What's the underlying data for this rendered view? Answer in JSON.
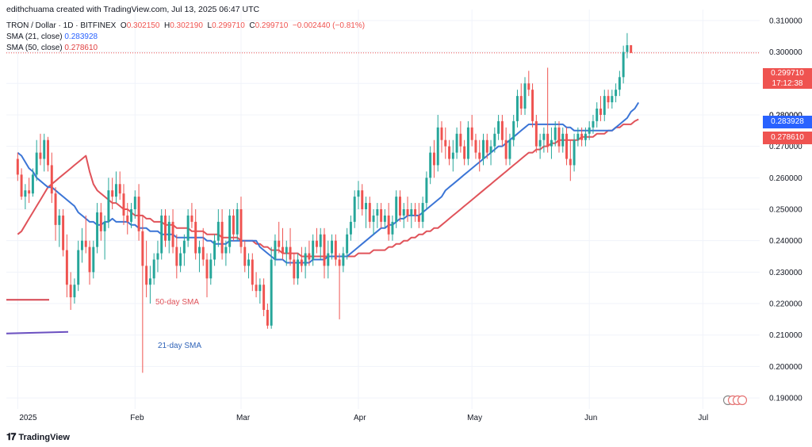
{
  "header": {
    "credit": "edithchuama created with TradingView.com, Jul 13, 2025 06:47 UTC",
    "symbol": "TRON / Dollar · 1D · BITFINEX",
    "o_label": "O",
    "o_value": "0.302150",
    "h_label": "H",
    "h_value": "0.302190",
    "l_label": "L",
    "l_value": "0.299710",
    "c_label": "C",
    "c_value": "0.299710",
    "change": "−0.002440 (−0.81%)",
    "sma21_label": "SMA (21, close)",
    "sma21_value": "0.283928",
    "sma50_label": "SMA (50, close)",
    "sma50_value": "0.278610"
  },
  "price_tags": {
    "last_price": "0.299710",
    "countdown": "17:12:38",
    "sma21": "0.283928",
    "sma50": "0.278610",
    "hidden_tick": "0.280000"
  },
  "annotations": {
    "sma50_text": "50-day SMA",
    "sma21_text": "21-day SMA"
  },
  "footer": {
    "brand": "TradingView",
    "brand_icon": "tradingview-logo-icon"
  },
  "colors": {
    "up": "#26a69a",
    "down": "#ef5350",
    "sma21": "#3b75d6",
    "sma50": "#e0535a",
    "last_line": "#ef5350",
    "grid": "#f0f3fa",
    "legend_sma50_line": "#d64550",
    "legend_sma21_line": "#6a4fc0"
  },
  "chart_data": {
    "type": "candlestick",
    "symbol": "TRON / Dollar",
    "interval": "1D",
    "exchange": "BITFINEX",
    "y_ticks": [
      0.19,
      0.2,
      0.21,
      0.22,
      0.23,
      0.24,
      0.25,
      0.26,
      0.27,
      0.28,
      0.29,
      0.3,
      0.31
    ],
    "y_tick_labels": [
      "0.190000",
      "0.200000",
      "0.210000",
      "0.220000",
      "0.230000",
      "0.240000",
      "0.250000",
      "0.260000",
      "0.270000",
      "0.280000",
      "0.290000",
      "0.300000",
      "0.310000"
    ],
    "ylim": [
      0.1865,
      0.3135
    ],
    "x_labels": [
      "2025",
      "Feb",
      "Mar",
      "Apr",
      "May",
      "Jun",
      "Jul"
    ],
    "x_label_days": [
      1,
      32,
      60,
      91,
      121,
      152,
      182
    ],
    "day_range": [
      -2,
      197
    ],
    "first_day": 1,
    "last_price": 0.29971,
    "ohlc": [
      [
        0.266,
        0.268,
        0.259,
        0.261
      ],
      [
        0.261,
        0.263,
        0.253,
        0.254
      ],
      [
        0.254,
        0.258,
        0.25,
        0.256
      ],
      [
        0.256,
        0.26,
        0.252,
        0.255
      ],
      [
        0.255,
        0.263,
        0.254,
        0.261
      ],
      [
        0.261,
        0.272,
        0.259,
        0.268
      ],
      [
        0.268,
        0.274,
        0.264,
        0.266
      ],
      [
        0.266,
        0.274,
        0.262,
        0.272
      ],
      [
        0.272,
        0.273,
        0.262,
        0.264
      ],
      [
        0.264,
        0.268,
        0.252,
        0.255
      ],
      [
        0.255,
        0.257,
        0.24,
        0.245
      ],
      [
        0.245,
        0.25,
        0.238,
        0.248
      ],
      [
        0.248,
        0.25,
        0.235,
        0.237
      ],
      [
        0.237,
        0.242,
        0.222,
        0.226
      ],
      [
        0.226,
        0.23,
        0.218,
        0.222
      ],
      [
        0.222,
        0.228,
        0.22,
        0.226
      ],
      [
        0.226,
        0.24,
        0.224,
        0.237
      ],
      [
        0.237,
        0.244,
        0.233,
        0.24
      ],
      [
        0.24,
        0.248,
        0.236,
        0.238
      ],
      [
        0.238,
        0.24,
        0.226,
        0.23
      ],
      [
        0.23,
        0.24,
        0.228,
        0.238
      ],
      [
        0.238,
        0.252,
        0.236,
        0.249
      ],
      [
        0.249,
        0.252,
        0.24,
        0.243
      ],
      [
        0.243,
        0.248,
        0.234,
        0.246
      ],
      [
        0.246,
        0.26,
        0.244,
        0.256
      ],
      [
        0.256,
        0.26,
        0.25,
        0.254
      ],
      [
        0.254,
        0.262,
        0.252,
        0.258
      ],
      [
        0.258,
        0.262,
        0.253,
        0.255
      ],
      [
        0.255,
        0.258,
        0.245,
        0.248
      ],
      [
        0.248,
        0.252,
        0.242,
        0.246
      ],
      [
        0.246,
        0.252,
        0.244,
        0.25
      ],
      [
        0.25,
        0.256,
        0.247,
        0.254
      ],
      [
        0.254,
        0.258,
        0.24,
        0.243
      ],
      [
        0.243,
        0.248,
        0.198,
        0.232
      ],
      [
        0.232,
        0.24,
        0.222,
        0.226
      ],
      [
        0.226,
        0.232,
        0.22,
        0.228
      ],
      [
        0.228,
        0.236,
        0.226,
        0.234
      ],
      [
        0.234,
        0.24,
        0.23,
        0.236
      ],
      [
        0.236,
        0.25,
        0.234,
        0.248
      ],
      [
        0.248,
        0.25,
        0.238,
        0.24
      ],
      [
        0.24,
        0.248,
        0.236,
        0.246
      ],
      [
        0.246,
        0.25,
        0.236,
        0.238
      ],
      [
        0.238,
        0.242,
        0.228,
        0.232
      ],
      [
        0.232,
        0.238,
        0.23,
        0.236
      ],
      [
        0.236,
        0.242,
        0.232,
        0.24
      ],
      [
        0.24,
        0.25,
        0.238,
        0.248
      ],
      [
        0.248,
        0.252,
        0.244,
        0.246
      ],
      [
        0.246,
        0.25,
        0.234,
        0.236
      ],
      [
        0.236,
        0.24,
        0.23,
        0.238
      ],
      [
        0.238,
        0.244,
        0.232,
        0.234
      ],
      [
        0.234,
        0.236,
        0.222,
        0.228
      ],
      [
        0.228,
        0.236,
        0.226,
        0.234
      ],
      [
        0.234,
        0.242,
        0.232,
        0.24
      ],
      [
        0.24,
        0.25,
        0.238,
        0.246
      ],
      [
        0.246,
        0.25,
        0.234,
        0.236
      ],
      [
        0.236,
        0.24,
        0.232,
        0.238
      ],
      [
        0.238,
        0.25,
        0.236,
        0.248
      ],
      [
        0.248,
        0.25,
        0.24,
        0.242
      ],
      [
        0.242,
        0.252,
        0.24,
        0.25
      ],
      [
        0.25,
        0.254,
        0.236,
        0.238
      ],
      [
        0.238,
        0.24,
        0.23,
        0.232
      ],
      [
        0.232,
        0.236,
        0.228,
        0.234
      ],
      [
        0.234,
        0.236,
        0.224,
        0.226
      ],
      [
        0.226,
        0.23,
        0.222,
        0.224
      ],
      [
        0.224,
        0.228,
        0.22,
        0.226
      ],
      [
        0.226,
        0.228,
        0.216,
        0.218
      ],
      [
        0.218,
        0.22,
        0.212,
        0.213
      ],
      [
        0.213,
        0.238,
        0.212,
        0.234
      ],
      [
        0.234,
        0.242,
        0.232,
        0.24
      ],
      [
        0.24,
        0.246,
        0.236,
        0.238
      ],
      [
        0.238,
        0.244,
        0.234,
        0.236
      ],
      [
        0.236,
        0.24,
        0.232,
        0.238
      ],
      [
        0.238,
        0.244,
        0.232,
        0.234
      ],
      [
        0.234,
        0.236,
        0.226,
        0.228
      ],
      [
        0.228,
        0.236,
        0.226,
        0.234
      ],
      [
        0.234,
        0.238,
        0.23,
        0.232
      ],
      [
        0.232,
        0.238,
        0.228,
        0.236
      ],
      [
        0.236,
        0.24,
        0.232,
        0.234
      ],
      [
        0.234,
        0.242,
        0.232,
        0.24
      ],
      [
        0.24,
        0.244,
        0.236,
        0.238
      ],
      [
        0.238,
        0.244,
        0.234,
        0.242
      ],
      [
        0.242,
        0.244,
        0.228,
        0.232
      ],
      [
        0.232,
        0.24,
        0.228,
        0.236
      ],
      [
        0.236,
        0.242,
        0.234,
        0.24
      ],
      [
        0.24,
        0.242,
        0.232,
        0.234
      ],
      [
        0.234,
        0.236,
        0.215,
        0.232
      ],
      [
        0.232,
        0.238,
        0.23,
        0.236
      ],
      [
        0.236,
        0.244,
        0.234,
        0.242
      ],
      [
        0.242,
        0.248,
        0.24,
        0.246
      ],
      [
        0.246,
        0.256,
        0.244,
        0.254
      ],
      [
        0.254,
        0.259,
        0.25,
        0.256
      ],
      [
        0.256,
        0.258,
        0.248,
        0.25
      ],
      [
        0.25,
        0.254,
        0.244,
        0.252
      ],
      [
        0.252,
        0.254,
        0.244,
        0.246
      ],
      [
        0.246,
        0.25,
        0.242,
        0.248
      ],
      [
        0.248,
        0.252,
        0.244,
        0.25
      ],
      [
        0.25,
        0.252,
        0.244,
        0.246
      ],
      [
        0.246,
        0.25,
        0.244,
        0.248
      ],
      [
        0.248,
        0.252,
        0.24,
        0.242
      ],
      [
        0.242,
        0.248,
        0.24,
        0.246
      ],
      [
        0.246,
        0.256,
        0.244,
        0.254
      ],
      [
        0.254,
        0.256,
        0.246,
        0.248
      ],
      [
        0.248,
        0.252,
        0.244,
        0.25
      ],
      [
        0.25,
        0.254,
        0.246,
        0.248
      ],
      [
        0.248,
        0.252,
        0.244,
        0.25
      ],
      [
        0.25,
        0.252,
        0.246,
        0.248
      ],
      [
        0.248,
        0.252,
        0.244,
        0.246
      ],
      [
        0.246,
        0.254,
        0.244,
        0.252
      ],
      [
        0.252,
        0.262,
        0.25,
        0.26
      ],
      [
        0.26,
        0.27,
        0.258,
        0.268
      ],
      [
        0.268,
        0.272,
        0.26,
        0.264
      ],
      [
        0.264,
        0.28,
        0.262,
        0.276
      ],
      [
        0.276,
        0.278,
        0.268,
        0.272
      ],
      [
        0.272,
        0.276,
        0.266,
        0.27
      ],
      [
        0.27,
        0.272,
        0.264,
        0.266
      ],
      [
        0.266,
        0.272,
        0.262,
        0.268
      ],
      [
        0.268,
        0.276,
        0.266,
        0.274
      ],
      [
        0.274,
        0.278,
        0.268,
        0.27
      ],
      [
        0.27,
        0.272,
        0.264,
        0.266
      ],
      [
        0.266,
        0.278,
        0.264,
        0.276
      ],
      [
        0.276,
        0.28,
        0.27,
        0.272
      ],
      [
        0.272,
        0.274,
        0.266,
        0.268
      ],
      [
        0.268,
        0.272,
        0.262,
        0.266
      ],
      [
        0.266,
        0.274,
        0.264,
        0.272
      ],
      [
        0.272,
        0.274,
        0.266,
        0.268
      ],
      [
        0.268,
        0.272,
        0.264,
        0.27
      ],
      [
        0.27,
        0.276,
        0.268,
        0.274
      ],
      [
        0.274,
        0.28,
        0.272,
        0.278
      ],
      [
        0.278,
        0.28,
        0.27,
        0.272
      ],
      [
        0.272,
        0.276,
        0.264,
        0.266
      ],
      [
        0.266,
        0.274,
        0.264,
        0.272
      ],
      [
        0.272,
        0.28,
        0.27,
        0.278
      ],
      [
        0.278,
        0.288,
        0.276,
        0.286
      ],
      [
        0.286,
        0.29,
        0.28,
        0.282
      ],
      [
        0.282,
        0.292,
        0.28,
        0.29
      ],
      [
        0.29,
        0.294,
        0.286,
        0.288
      ],
      [
        0.288,
        0.29,
        0.276,
        0.278
      ],
      [
        0.278,
        0.28,
        0.268,
        0.27
      ],
      [
        0.27,
        0.274,
        0.266,
        0.272
      ],
      [
        0.272,
        0.276,
        0.268,
        0.274
      ],
      [
        0.274,
        0.295,
        0.268,
        0.27
      ],
      [
        0.27,
        0.276,
        0.266,
        0.272
      ],
      [
        0.272,
        0.278,
        0.27,
        0.276
      ],
      [
        0.276,
        0.278,
        0.268,
        0.27
      ],
      [
        0.27,
        0.276,
        0.268,
        0.274
      ],
      [
        0.274,
        0.276,
        0.264,
        0.266
      ],
      [
        0.266,
        0.272,
        0.259,
        0.264
      ],
      [
        0.264,
        0.274,
        0.262,
        0.272
      ],
      [
        0.272,
        0.276,
        0.27,
        0.274
      ],
      [
        0.274,
        0.276,
        0.27,
        0.272
      ],
      [
        0.272,
        0.276,
        0.27,
        0.274
      ],
      [
        0.274,
        0.278,
        0.272,
        0.276
      ],
      [
        0.276,
        0.28,
        0.274,
        0.278
      ],
      [
        0.278,
        0.284,
        0.276,
        0.282
      ],
      [
        0.282,
        0.286,
        0.278,
        0.28
      ],
      [
        0.28,
        0.288,
        0.278,
        0.286
      ],
      [
        0.286,
        0.288,
        0.282,
        0.284
      ],
      [
        0.284,
        0.288,
        0.282,
        0.286
      ],
      [
        0.286,
        0.29,
        0.284,
        0.288
      ],
      [
        0.288,
        0.294,
        0.286,
        0.292
      ],
      [
        0.292,
        0.302,
        0.29,
        0.3
      ],
      [
        0.3,
        0.306,
        0.298,
        0.30215
      ],
      [
        0.30215,
        0.30219,
        0.29971,
        0.29971
      ]
    ],
    "sma21": [
      0.268,
      0.267,
      0.265,
      0.263,
      0.262,
      0.26,
      0.259,
      0.258,
      0.257,
      0.257,
      0.256,
      0.255,
      0.254,
      0.253,
      0.252,
      0.251,
      0.249,
      0.248,
      0.247,
      0.246,
      0.246,
      0.245,
      0.245,
      0.246,
      0.246,
      0.247,
      0.246,
      0.246,
      0.246,
      0.246,
      0.245,
      0.245,
      0.244,
      0.244,
      0.244,
      0.243,
      0.243,
      0.243,
      0.242,
      0.242,
      0.242,
      0.242,
      0.241,
      0.241,
      0.241,
      0.241,
      0.241,
      0.241,
      0.241,
      0.241,
      0.24,
      0.24,
      0.239,
      0.239,
      0.239,
      0.239,
      0.24,
      0.24,
      0.24,
      0.24,
      0.24,
      0.24,
      0.24,
      0.24,
      0.238,
      0.237,
      0.236,
      0.235,
      0.234,
      0.234,
      0.234,
      0.233,
      0.233,
      0.233,
      0.233,
      0.233,
      0.233,
      0.233,
      0.234,
      0.234,
      0.234,
      0.234,
      0.235,
      0.235,
      0.235,
      0.235,
      0.235,
      0.235,
      0.236,
      0.237,
      0.238,
      0.239,
      0.24,
      0.241,
      0.242,
      0.243,
      0.244,
      0.244,
      0.245,
      0.245,
      0.246,
      0.247,
      0.247,
      0.248,
      0.248,
      0.248,
      0.248,
      0.249,
      0.25,
      0.251,
      0.252,
      0.253,
      0.254,
      0.256,
      0.257,
      0.258,
      0.259,
      0.26,
      0.261,
      0.262,
      0.263,
      0.264,
      0.265,
      0.266,
      0.267,
      0.268,
      0.269,
      0.27,
      0.27,
      0.271,
      0.272,
      0.273,
      0.274,
      0.275,
      0.276,
      0.277,
      0.277,
      0.277,
      0.277,
      0.277,
      0.277,
      0.277,
      0.277,
      0.277,
      0.277,
      0.276,
      0.276,
      0.275,
      0.275,
      0.275,
      0.275,
      0.275,
      0.275,
      0.275,
      0.275,
      0.275,
      0.275,
      0.275,
      0.276,
      0.277,
      0.278,
      0.279,
      0.281,
      0.282,
      0.283928
    ],
    "sma50": [
      0.242,
      0.243,
      0.245,
      0.247,
      0.249,
      0.251,
      0.253,
      0.255,
      0.257,
      0.258,
      0.259,
      0.26,
      0.261,
      0.262,
      0.263,
      0.264,
      0.265,
      0.266,
      0.267,
      0.262,
      0.258,
      0.256,
      0.255,
      0.254,
      0.253,
      0.252,
      0.252,
      0.251,
      0.25,
      0.25,
      0.249,
      0.248,
      0.248,
      0.248,
      0.247,
      0.247,
      0.246,
      0.246,
      0.246,
      0.245,
      0.245,
      0.245,
      0.244,
      0.244,
      0.244,
      0.244,
      0.243,
      0.243,
      0.243,
      0.243,
      0.242,
      0.242,
      0.242,
      0.242,
      0.241,
      0.241,
      0.241,
      0.241,
      0.241,
      0.24,
      0.24,
      0.24,
      0.24,
      0.239,
      0.239,
      0.238,
      0.238,
      0.237,
      0.237,
      0.237,
      0.236,
      0.236,
      0.236,
      0.236,
      0.236,
      0.235,
      0.235,
      0.235,
      0.235,
      0.235,
      0.235,
      0.235,
      0.235,
      0.235,
      0.235,
      0.235,
      0.235,
      0.235,
      0.235,
      0.235,
      0.236,
      0.236,
      0.236,
      0.236,
      0.237,
      0.237,
      0.237,
      0.237,
      0.238,
      0.238,
      0.239,
      0.239,
      0.24,
      0.24,
      0.241,
      0.241,
      0.242,
      0.242,
      0.243,
      0.243,
      0.244,
      0.244,
      0.245,
      0.246,
      0.247,
      0.248,
      0.249,
      0.25,
      0.251,
      0.252,
      0.253,
      0.254,
      0.255,
      0.256,
      0.257,
      0.258,
      0.259,
      0.26,
      0.261,
      0.262,
      0.263,
      0.264,
      0.265,
      0.266,
      0.267,
      0.268,
      0.268,
      0.269,
      0.269,
      0.27,
      0.27,
      0.271,
      0.271,
      0.272,
      0.272,
      0.272,
      0.272,
      0.272,
      0.272,
      0.273,
      0.273,
      0.273,
      0.273,
      0.274,
      0.274,
      0.274,
      0.275,
      0.275,
      0.276,
      0.276,
      0.277,
      0.277,
      0.277,
      0.278,
      0.27861
    ],
    "sma_start_day": 20,
    "legend_stub_sma50": [
      0.2212,
      0.2212
    ],
    "legend_stub_sma21": [
      0.2105,
      0.211
    ]
  }
}
